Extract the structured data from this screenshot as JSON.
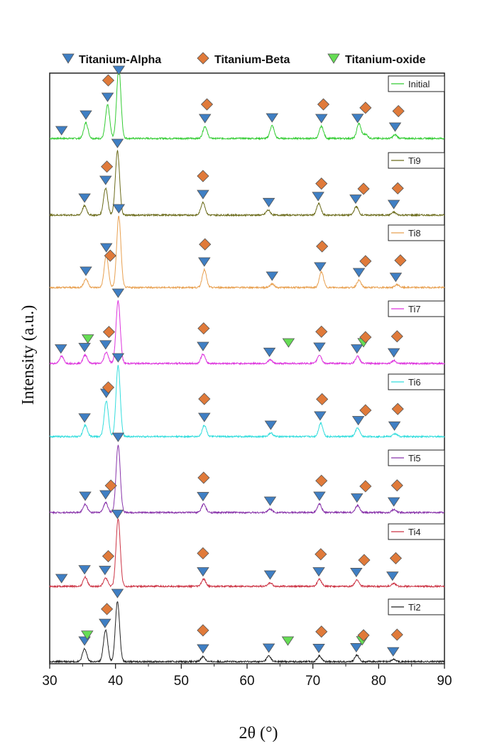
{
  "chart_data": {
    "type": "line",
    "xlabel": "2θ (°)",
    "ylabel": "Intensity  (a.u.)",
    "xlim": [
      30,
      90
    ],
    "xticks": [
      "30",
      "40",
      "50",
      "60",
      "70",
      "80",
      "90"
    ],
    "legend": [
      {
        "name": "Titanium-Alpha",
        "marker": "triangle",
        "color": "#3f7fc4"
      },
      {
        "name": "Titanium-Beta",
        "marker": "diamond",
        "color": "#e07a3a"
      },
      {
        "name": "Titanium-oxide",
        "marker": "triangle",
        "color": "#66dd55"
      }
    ],
    "series": [
      {
        "name": "Initial",
        "color": "#33cc33",
        "peaks": [
          [
            35.5,
            0.22
          ],
          [
            38.8,
            0.47
          ],
          [
            40.5,
            1.0
          ],
          [
            53.6,
            0.17
          ],
          [
            63.8,
            0.18
          ],
          [
            71.3,
            0.17
          ],
          [
            77.0,
            0.21
          ],
          [
            78.0,
            0.06
          ],
          [
            82.5,
            0.05
          ]
        ],
        "alpha": [
          31.8,
          35.5,
          38.8,
          40.5,
          53.6,
          63.8,
          71.3,
          76.8,
          82.5
        ],
        "beta": [
          38.9,
          53.9,
          71.6,
          78.0,
          83.0
        ],
        "oxide": []
      },
      {
        "name": "Ti9",
        "color": "#6b6b1a",
        "peaks": [
          [
            35.3,
            0.13
          ],
          [
            38.5,
            0.38
          ],
          [
            40.3,
            0.9
          ],
          [
            53.3,
            0.18
          ],
          [
            63.2,
            0.07
          ],
          [
            70.9,
            0.16
          ],
          [
            76.6,
            0.12
          ],
          [
            82.3,
            0.04
          ]
        ],
        "alpha": [
          35.3,
          38.5,
          40.3,
          53.3,
          63.3,
          70.8,
          76.5,
          82.3
        ],
        "beta": [
          38.7,
          53.3,
          71.3,
          77.7,
          82.9
        ],
        "oxide": []
      },
      {
        "name": "Ti8",
        "color": "#e8a050",
        "peaks": [
          [
            35.5,
            0.12
          ],
          [
            38.6,
            0.45
          ],
          [
            40.5,
            1.0
          ],
          [
            53.5,
            0.25
          ],
          [
            63.8,
            0.05
          ],
          [
            71.3,
            0.22
          ],
          [
            77.0,
            0.1
          ],
          [
            82.8,
            0.04
          ]
        ],
        "alpha": [
          35.5,
          38.6,
          40.5,
          53.5,
          63.8,
          71.1,
          77.0,
          82.6
        ],
        "beta": [
          39.2,
          53.6,
          71.4,
          78.0,
          83.3
        ],
        "oxide": []
      },
      {
        "name": "Ti7",
        "color": "#dd33dd",
        "peaks": [
          [
            31.8,
            0.1
          ],
          [
            35.4,
            0.12
          ],
          [
            38.6,
            0.16
          ],
          [
            40.4,
            0.88
          ],
          [
            53.3,
            0.13
          ],
          [
            63.5,
            0.05
          ],
          [
            71.0,
            0.12
          ],
          [
            76.8,
            0.1
          ],
          [
            82.3,
            0.04
          ]
        ],
        "alpha": [
          31.7,
          35.3,
          38.5,
          40.4,
          53.3,
          63.4,
          71.0,
          76.7,
          82.3
        ],
        "beta": [
          39.0,
          53.4,
          71.3,
          78.0,
          82.8
        ],
        "oxide": [
          35.8,
          66.3,
          77.7
        ]
      },
      {
        "name": "Ti6",
        "color": "#33dddd",
        "peaks": [
          [
            35.4,
            0.16
          ],
          [
            38.6,
            0.5
          ],
          [
            40.4,
            1.0
          ],
          [
            53.5,
            0.16
          ],
          [
            63.6,
            0.05
          ],
          [
            71.2,
            0.19
          ],
          [
            76.8,
            0.12
          ],
          [
            82.5,
            0.04
          ]
        ],
        "alpha": [
          35.3,
          38.6,
          40.4,
          53.5,
          63.6,
          71.1,
          76.9,
          82.4
        ],
        "beta": [
          38.9,
          53.5,
          71.4,
          78.0,
          82.9
        ],
        "oxide": []
      },
      {
        "name": "Ti5",
        "color": "#8833aa",
        "peaks": [
          [
            35.4,
            0.12
          ],
          [
            38.5,
            0.14
          ],
          [
            40.4,
            0.95
          ],
          [
            53.4,
            0.12
          ],
          [
            63.5,
            0.05
          ],
          [
            71.0,
            0.12
          ],
          [
            76.8,
            0.1
          ],
          [
            82.3,
            0.04
          ]
        ],
        "alpha": [
          35.4,
          38.5,
          40.4,
          53.3,
          63.5,
          71.0,
          76.7,
          82.3
        ],
        "beta": [
          39.3,
          53.4,
          71.3,
          78.0,
          82.8
        ],
        "oxide": []
      },
      {
        "name": "Ti4",
        "color": "#cc3344",
        "peaks": [
          [
            35.4,
            0.13
          ],
          [
            38.5,
            0.12
          ],
          [
            40.4,
            0.95
          ],
          [
            53.4,
            0.1
          ],
          [
            63.5,
            0.05
          ],
          [
            71.0,
            0.1
          ],
          [
            76.7,
            0.09
          ],
          [
            82.3,
            0.04
          ]
        ],
        "alpha": [
          31.8,
          35.3,
          38.4,
          40.3,
          53.3,
          63.5,
          70.9,
          76.6,
          82.1
        ],
        "beta": [
          38.9,
          53.3,
          71.2,
          77.8,
          82.6
        ],
        "oxide": []
      },
      {
        "name": "Ti2",
        "color": "#222222",
        "peaks": [
          [
            35.3,
            0.18
          ],
          [
            38.5,
            0.45
          ],
          [
            40.3,
            0.85
          ],
          [
            53.3,
            0.07
          ],
          [
            63.3,
            0.08
          ],
          [
            71.0,
            0.08
          ],
          [
            76.7,
            0.09
          ],
          [
            82.3,
            0.03
          ]
        ],
        "alpha": [
          35.3,
          38.4,
          40.3,
          53.3,
          63.3,
          70.9,
          76.6,
          82.2
        ],
        "beta": [
          38.7,
          53.3,
          71.3,
          77.7,
          82.8
        ],
        "oxide": [
          35.7,
          66.2,
          77.5
        ]
      }
    ]
  }
}
